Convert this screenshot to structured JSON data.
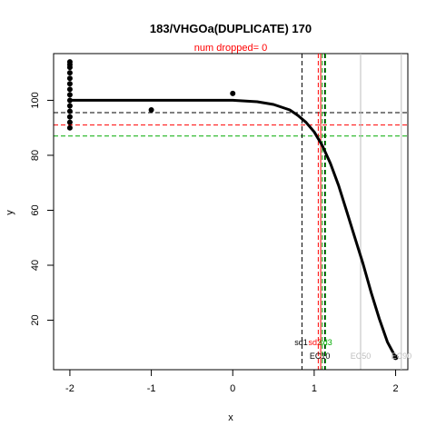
{
  "chart_data": {
    "type": "scatter",
    "title": "183/VHGOa(DUPLICATE) 170",
    "subtitle": "num dropped= 0",
    "xlabel": "x",
    "ylabel": "y",
    "xlim": [
      -2.2,
      2.15
    ],
    "ylim": [
      2,
      117
    ],
    "x_ticks": [
      -2,
      -1,
      0,
      1,
      2
    ],
    "y_ticks": [
      20,
      40,
      60,
      80,
      100
    ],
    "points": [
      {
        "x": -2,
        "y": 114
      },
      {
        "x": -2,
        "y": 113
      },
      {
        "x": -2,
        "y": 112
      },
      {
        "x": -2,
        "y": 110
      },
      {
        "x": -2,
        "y": 108
      },
      {
        "x": -2,
        "y": 106
      },
      {
        "x": -2,
        "y": 104
      },
      {
        "x": -2,
        "y": 102
      },
      {
        "x": -2,
        "y": 100
      },
      {
        "x": -2,
        "y": 98
      },
      {
        "x": -2,
        "y": 96
      },
      {
        "x": -2,
        "y": 94
      },
      {
        "x": -2,
        "y": 92
      },
      {
        "x": -2,
        "y": 90
      },
      {
        "x": -1,
        "y": 96.5
      },
      {
        "x": 0,
        "y": 102.5
      },
      {
        "x": 2,
        "y": 6.5
      }
    ],
    "fit_curve": {
      "x": [
        -2,
        -1.5,
        -1,
        -0.5,
        0,
        0.3,
        0.5,
        0.7,
        0.8,
        0.9,
        1.0,
        1.1,
        1.2,
        1.3,
        1.4,
        1.5,
        1.6,
        1.7,
        1.8,
        1.9,
        2.0
      ],
      "y": [
        100,
        100,
        100,
        100,
        100,
        99.5,
        98.5,
        96.5,
        94.5,
        92,
        88.5,
        83.5,
        77,
        69,
        59.5,
        50,
        40.5,
        30,
        20.5,
        12,
        6.5
      ]
    },
    "vlines": [
      {
        "x": 0.85,
        "color": "#000000",
        "dash": true
      },
      {
        "x": 1.13,
        "color": "#000000",
        "dash": true
      },
      {
        "x": 1.05,
        "color": "#ff0000",
        "dash": true
      },
      {
        "x": 1.08,
        "color": "#ff0000",
        "dash": false
      },
      {
        "x": 1.1,
        "color": "#00aa00",
        "dash": true
      },
      {
        "x": 1.14,
        "color": "#00aa00",
        "dash": true
      },
      {
        "x": 1.57,
        "color": "#bebebe",
        "dash": false
      },
      {
        "x": 2.07,
        "color": "#bebebe",
        "dash": false
      }
    ],
    "hlines": [
      {
        "y": 95.5,
        "color": "#000000"
      },
      {
        "y": 91,
        "color": "#ff0000"
      },
      {
        "y": 87,
        "color": "#00aa00"
      }
    ],
    "annotations": [
      {
        "text": "sd1",
        "x": 0.84,
        "y": 11,
        "color": "#000000"
      },
      {
        "text": "sd2",
        "x": 1.01,
        "y": 11,
        "color": "#ff0000"
      },
      {
        "text": "sd3",
        "x": 1.14,
        "y": 11,
        "color": "#00aa00"
      },
      {
        "text": "EC10",
        "x": 1.07,
        "y": 6,
        "color": "#000000"
      },
      {
        "text": "EC50",
        "x": 1.57,
        "y": 6,
        "color": "#bebebe"
      },
      {
        "text": "EC90",
        "x": 2.07,
        "y": 6,
        "color": "#bebebe"
      }
    ],
    "grid": false,
    "legend": "none"
  }
}
